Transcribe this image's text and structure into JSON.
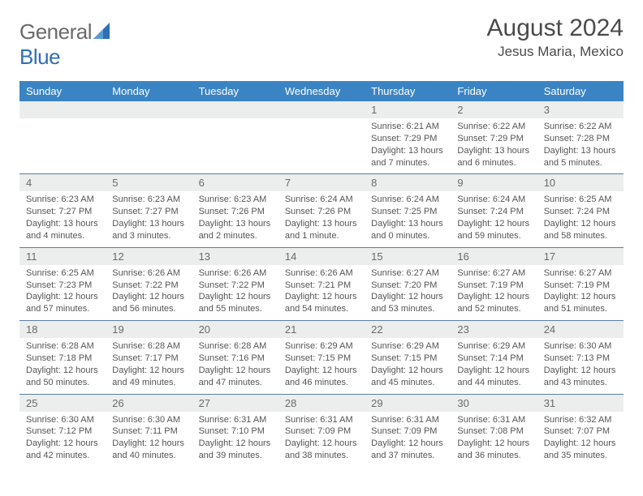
{
  "brand": {
    "name_a": "General",
    "name_b": "Blue"
  },
  "header": {
    "month": "August 2024",
    "location": "Jesus Maria, Mexico"
  },
  "colors": {
    "header_bar": "#3b84c4",
    "daynum_bg": "#eceded",
    "week_border": "#5a7fa3",
    "text": "#4a4a4a",
    "logo_blue": "#2f6fb3"
  },
  "dow": [
    "Sunday",
    "Monday",
    "Tuesday",
    "Wednesday",
    "Thursday",
    "Friday",
    "Saturday"
  ],
  "weeks": [
    [
      {
        "n": "",
        "sr": "",
        "ss": "",
        "dl": ""
      },
      {
        "n": "",
        "sr": "",
        "ss": "",
        "dl": ""
      },
      {
        "n": "",
        "sr": "",
        "ss": "",
        "dl": ""
      },
      {
        "n": "",
        "sr": "",
        "ss": "",
        "dl": ""
      },
      {
        "n": "1",
        "sr": "Sunrise: 6:21 AM",
        "ss": "Sunset: 7:29 PM",
        "dl": "Daylight: 13 hours and 7 minutes."
      },
      {
        "n": "2",
        "sr": "Sunrise: 6:22 AM",
        "ss": "Sunset: 7:29 PM",
        "dl": "Daylight: 13 hours and 6 minutes."
      },
      {
        "n": "3",
        "sr": "Sunrise: 6:22 AM",
        "ss": "Sunset: 7:28 PM",
        "dl": "Daylight: 13 hours and 5 minutes."
      }
    ],
    [
      {
        "n": "4",
        "sr": "Sunrise: 6:23 AM",
        "ss": "Sunset: 7:27 PM",
        "dl": "Daylight: 13 hours and 4 minutes."
      },
      {
        "n": "5",
        "sr": "Sunrise: 6:23 AM",
        "ss": "Sunset: 7:27 PM",
        "dl": "Daylight: 13 hours and 3 minutes."
      },
      {
        "n": "6",
        "sr": "Sunrise: 6:23 AM",
        "ss": "Sunset: 7:26 PM",
        "dl": "Daylight: 13 hours and 2 minutes."
      },
      {
        "n": "7",
        "sr": "Sunrise: 6:24 AM",
        "ss": "Sunset: 7:26 PM",
        "dl": "Daylight: 13 hours and 1 minute."
      },
      {
        "n": "8",
        "sr": "Sunrise: 6:24 AM",
        "ss": "Sunset: 7:25 PM",
        "dl": "Daylight: 13 hours and 0 minutes."
      },
      {
        "n": "9",
        "sr": "Sunrise: 6:24 AM",
        "ss": "Sunset: 7:24 PM",
        "dl": "Daylight: 12 hours and 59 minutes."
      },
      {
        "n": "10",
        "sr": "Sunrise: 6:25 AM",
        "ss": "Sunset: 7:24 PM",
        "dl": "Daylight: 12 hours and 58 minutes."
      }
    ],
    [
      {
        "n": "11",
        "sr": "Sunrise: 6:25 AM",
        "ss": "Sunset: 7:23 PM",
        "dl": "Daylight: 12 hours and 57 minutes."
      },
      {
        "n": "12",
        "sr": "Sunrise: 6:26 AM",
        "ss": "Sunset: 7:22 PM",
        "dl": "Daylight: 12 hours and 56 minutes."
      },
      {
        "n": "13",
        "sr": "Sunrise: 6:26 AM",
        "ss": "Sunset: 7:22 PM",
        "dl": "Daylight: 12 hours and 55 minutes."
      },
      {
        "n": "14",
        "sr": "Sunrise: 6:26 AM",
        "ss": "Sunset: 7:21 PM",
        "dl": "Daylight: 12 hours and 54 minutes."
      },
      {
        "n": "15",
        "sr": "Sunrise: 6:27 AM",
        "ss": "Sunset: 7:20 PM",
        "dl": "Daylight: 12 hours and 53 minutes."
      },
      {
        "n": "16",
        "sr": "Sunrise: 6:27 AM",
        "ss": "Sunset: 7:19 PM",
        "dl": "Daylight: 12 hours and 52 minutes."
      },
      {
        "n": "17",
        "sr": "Sunrise: 6:27 AM",
        "ss": "Sunset: 7:19 PM",
        "dl": "Daylight: 12 hours and 51 minutes."
      }
    ],
    [
      {
        "n": "18",
        "sr": "Sunrise: 6:28 AM",
        "ss": "Sunset: 7:18 PM",
        "dl": "Daylight: 12 hours and 50 minutes."
      },
      {
        "n": "19",
        "sr": "Sunrise: 6:28 AM",
        "ss": "Sunset: 7:17 PM",
        "dl": "Daylight: 12 hours and 49 minutes."
      },
      {
        "n": "20",
        "sr": "Sunrise: 6:28 AM",
        "ss": "Sunset: 7:16 PM",
        "dl": "Daylight: 12 hours and 47 minutes."
      },
      {
        "n": "21",
        "sr": "Sunrise: 6:29 AM",
        "ss": "Sunset: 7:15 PM",
        "dl": "Daylight: 12 hours and 46 minutes."
      },
      {
        "n": "22",
        "sr": "Sunrise: 6:29 AM",
        "ss": "Sunset: 7:15 PM",
        "dl": "Daylight: 12 hours and 45 minutes."
      },
      {
        "n": "23",
        "sr": "Sunrise: 6:29 AM",
        "ss": "Sunset: 7:14 PM",
        "dl": "Daylight: 12 hours and 44 minutes."
      },
      {
        "n": "24",
        "sr": "Sunrise: 6:30 AM",
        "ss": "Sunset: 7:13 PM",
        "dl": "Daylight: 12 hours and 43 minutes."
      }
    ],
    [
      {
        "n": "25",
        "sr": "Sunrise: 6:30 AM",
        "ss": "Sunset: 7:12 PM",
        "dl": "Daylight: 12 hours and 42 minutes."
      },
      {
        "n": "26",
        "sr": "Sunrise: 6:30 AM",
        "ss": "Sunset: 7:11 PM",
        "dl": "Daylight: 12 hours and 40 minutes."
      },
      {
        "n": "27",
        "sr": "Sunrise: 6:31 AM",
        "ss": "Sunset: 7:10 PM",
        "dl": "Daylight: 12 hours and 39 minutes."
      },
      {
        "n": "28",
        "sr": "Sunrise: 6:31 AM",
        "ss": "Sunset: 7:09 PM",
        "dl": "Daylight: 12 hours and 38 minutes."
      },
      {
        "n": "29",
        "sr": "Sunrise: 6:31 AM",
        "ss": "Sunset: 7:09 PM",
        "dl": "Daylight: 12 hours and 37 minutes."
      },
      {
        "n": "30",
        "sr": "Sunrise: 6:31 AM",
        "ss": "Sunset: 7:08 PM",
        "dl": "Daylight: 12 hours and 36 minutes."
      },
      {
        "n": "31",
        "sr": "Sunrise: 6:32 AM",
        "ss": "Sunset: 7:07 PM",
        "dl": "Daylight: 12 hours and 35 minutes."
      }
    ]
  ]
}
